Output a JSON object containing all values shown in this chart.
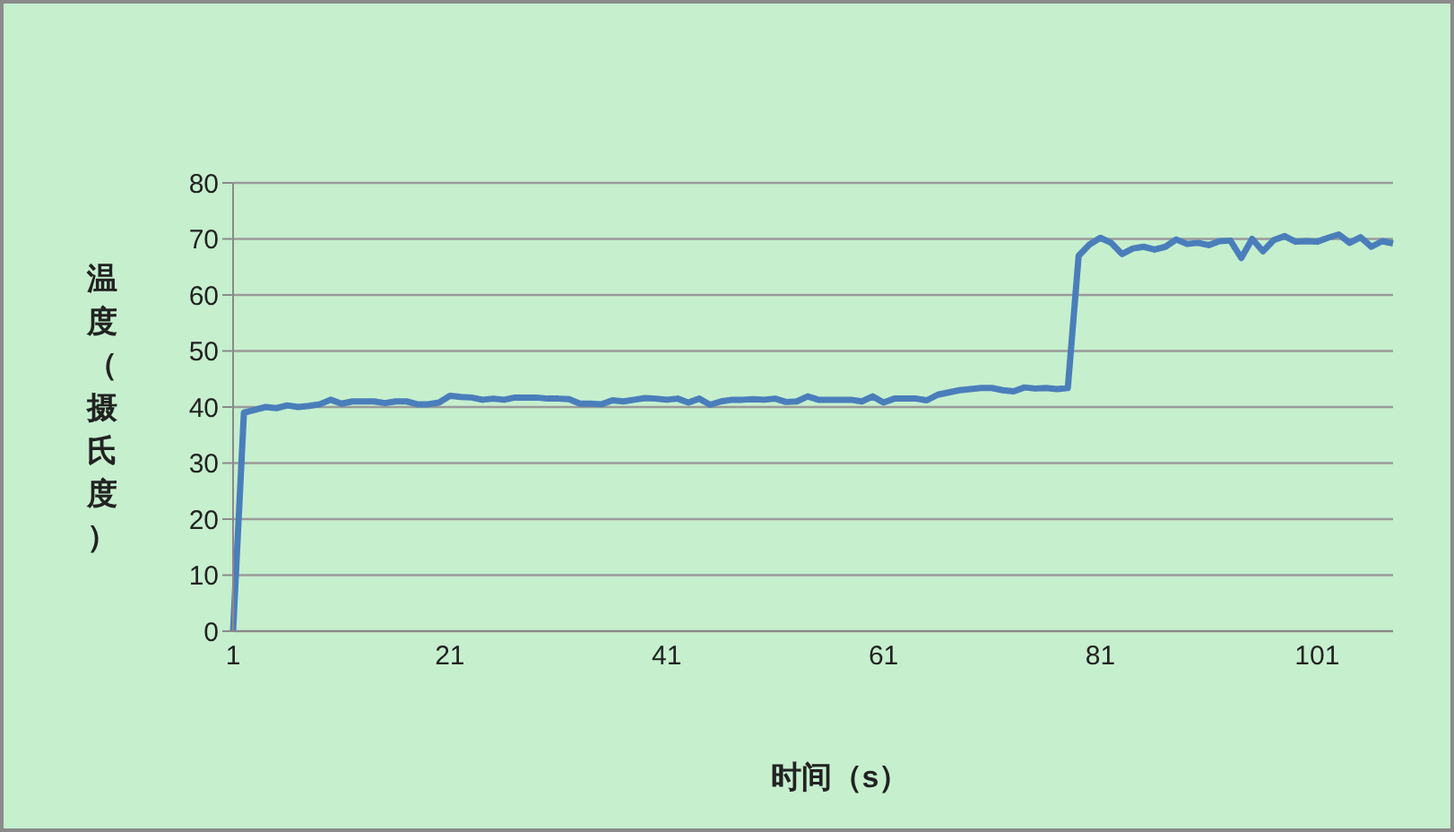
{
  "chart_data": {
    "type": "line",
    "xlabel": "时间（s）",
    "ylabel": "温度（摄氏度）",
    "categories": [
      "1",
      null,
      null,
      null,
      null,
      null,
      null,
      null,
      null,
      null,
      null,
      null,
      null,
      null,
      null,
      null,
      null,
      null,
      null,
      null,
      "21",
      null,
      null,
      null,
      null,
      null,
      null,
      null,
      null,
      null,
      null,
      null,
      null,
      null,
      null,
      null,
      null,
      null,
      null,
      null,
      "41",
      null,
      null,
      null,
      null,
      null,
      null,
      null,
      null,
      null,
      null,
      null,
      null,
      null,
      null,
      null,
      null,
      null,
      null,
      null,
      "61",
      null,
      null,
      null,
      null,
      null,
      null,
      null,
      null,
      null,
      null,
      null,
      null,
      null,
      null,
      null,
      null,
      null,
      null,
      null,
      "81",
      null,
      null,
      null,
      null,
      null,
      null,
      null,
      null,
      null,
      null,
      null,
      null,
      null,
      null,
      null,
      null,
      null,
      null,
      null,
      "101",
      null,
      null,
      null,
      null,
      null,
      null,
      null
    ],
    "series": [
      {
        "color": "#4a7ebb",
        "values": [
          0,
          39,
          39.5,
          40,
          39.8,
          40.3,
          40,
          40.2,
          40.5,
          41.3,
          40.6,
          41,
          41,
          41,
          40.7,
          41,
          41,
          40.5,
          40.5,
          40.8,
          42,
          41.8,
          41.7,
          41.3,
          41.5,
          41.3,
          41.7,
          41.7,
          41.7,
          41.5,
          41.5,
          41.4,
          40.6,
          40.6,
          40.5,
          41.2,
          41,
          41.3,
          41.6,
          41.5,
          41.3,
          41.5,
          40.8,
          41.5,
          40.4,
          41,
          41.3,
          41.3,
          41.4,
          41.3,
          41.5,
          40.9,
          41,
          41.9,
          41.3,
          41.3,
          41.3,
          41.3,
          41,
          41.9,
          40.8,
          41.5,
          41.5,
          41.5,
          41.2,
          42.2,
          42.6,
          43,
          43.2,
          43.4,
          43.4,
          43,
          42.8,
          43.5,
          43.3,
          43.4,
          43.2,
          43.4,
          67,
          69,
          70.2,
          69.3,
          67.3,
          68.3,
          68.6,
          68.1,
          68.6,
          69.9,
          69.1,
          69.3,
          68.9,
          69.6,
          69.7,
          66.6,
          70,
          67.8,
          69.8,
          70.5,
          69.5,
          69.6,
          69.5,
          70.2,
          70.8,
          69.3,
          70.3,
          68.6,
          69.6,
          69.2
        ]
      }
    ],
    "ylim": [
      0,
      80
    ],
    "yticks": [
      0,
      10,
      20,
      30,
      40,
      50,
      60,
      70,
      80
    ],
    "grid": "y",
    "legend": false,
    "marker": "none",
    "line_style": "solid"
  }
}
